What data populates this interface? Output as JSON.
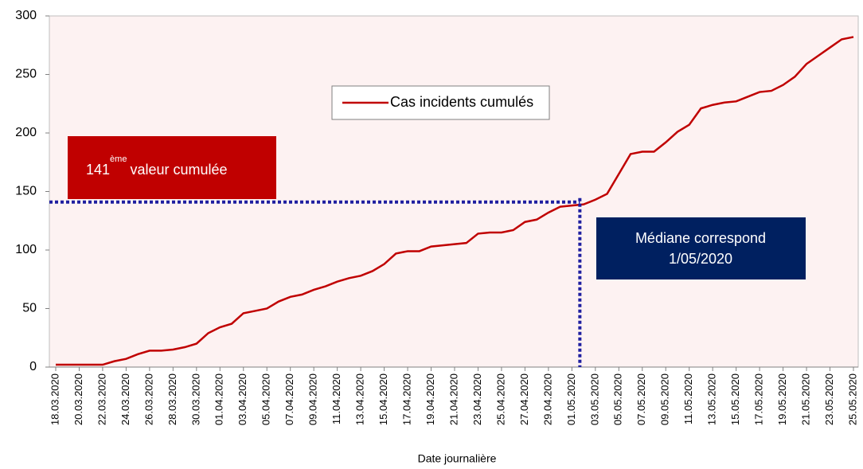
{
  "chart_data": {
    "type": "line",
    "x_label": "Date journalière",
    "categories": [
      "18.03.2020",
      null,
      "20.03.2020",
      null,
      "22.03.2020",
      null,
      "24.03.2020",
      null,
      "26.03.2020",
      null,
      "28.03.2020",
      null,
      "30.03.2020",
      null,
      "01.04.2020",
      null,
      "03.04.2020",
      null,
      "05.04.2020",
      null,
      "07.04.2020",
      null,
      "09.04.2020",
      null,
      "11.04.2020",
      null,
      "13.04.2020",
      null,
      "15.04.2020",
      null,
      "17.04.2020",
      null,
      "19.04.2020",
      null,
      "21.04.2020",
      null,
      "23.04.2020",
      null,
      "25.04.2020",
      null,
      "27.04.2020",
      null,
      "29.04.2020",
      null,
      "01.05.2020",
      null,
      "03.05.2020",
      null,
      "05.05.2020",
      null,
      "07.05.2020",
      null,
      "09.05.2020",
      null,
      "11.05.2020",
      null,
      "13.05.2020",
      null,
      "15.05.2020",
      null,
      "17.05.2020",
      null,
      "19.05.2020",
      null,
      "21.05.2020",
      null,
      "23.05.2020",
      null,
      "25.05.2020"
    ],
    "series": [
      {
        "name": "Cas incidents cumulés",
        "color": "#c00000",
        "values": [
          2,
          2,
          2,
          2,
          2,
          5,
          7,
          11,
          14,
          14,
          15,
          17,
          20,
          29,
          34,
          37,
          46,
          48,
          50,
          56,
          60,
          62,
          66,
          69,
          73,
          76,
          78,
          82,
          88,
          97,
          99,
          99,
          103,
          104,
          105,
          106,
          114,
          115,
          115,
          117,
          124,
          126,
          132,
          137,
          138,
          139,
          143,
          148,
          165,
          182,
          184,
          184,
          192,
          201,
          207,
          221,
          224,
          226,
          227,
          231,
          235,
          236,
          241,
          248,
          259,
          266,
          273,
          280,
          282
        ]
      }
    ],
    "ylim": [
      0,
      300
    ],
    "yticks": [
      0,
      50,
      100,
      150,
      200,
      250,
      300
    ],
    "annotations": [
      {
        "value": 141,
        "label": "141",
        "superscript": "ème",
        "text": "valeur cumulée",
        "color": "#c00000"
      },
      {
        "category": "01.05.2020",
        "lines": [
          "Médiane correspond",
          "1/05/2020"
        ],
        "color": "#002060"
      }
    ],
    "guide_color": "#1f1fa0"
  }
}
